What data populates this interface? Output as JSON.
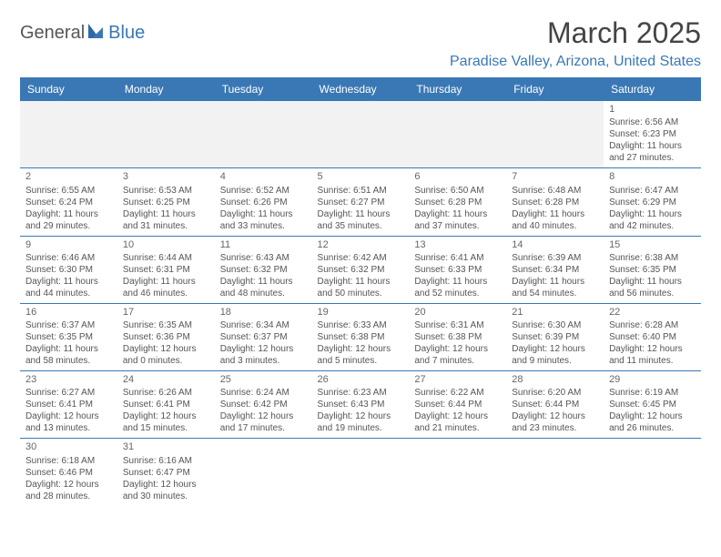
{
  "logo": {
    "text_general": "General",
    "text_blue": "Blue"
  },
  "title": "March 2025",
  "location": "Paradise Valley, Arizona, United States",
  "weekdays": [
    "Sunday",
    "Monday",
    "Tuesday",
    "Wednesday",
    "Thursday",
    "Friday",
    "Saturday"
  ],
  "colors": {
    "header_bg": "#3a78b5",
    "text": "#555",
    "rule": "#3a78b5"
  },
  "grid": [
    [
      null,
      null,
      null,
      null,
      null,
      null,
      {
        "n": "1",
        "sunrise": "Sunrise: 6:56 AM",
        "sunset": "Sunset: 6:23 PM",
        "daylight": "Daylight: 11 hours and 27 minutes."
      }
    ],
    [
      {
        "n": "2",
        "sunrise": "Sunrise: 6:55 AM",
        "sunset": "Sunset: 6:24 PM",
        "daylight": "Daylight: 11 hours and 29 minutes."
      },
      {
        "n": "3",
        "sunrise": "Sunrise: 6:53 AM",
        "sunset": "Sunset: 6:25 PM",
        "daylight": "Daylight: 11 hours and 31 minutes."
      },
      {
        "n": "4",
        "sunrise": "Sunrise: 6:52 AM",
        "sunset": "Sunset: 6:26 PM",
        "daylight": "Daylight: 11 hours and 33 minutes."
      },
      {
        "n": "5",
        "sunrise": "Sunrise: 6:51 AM",
        "sunset": "Sunset: 6:27 PM",
        "daylight": "Daylight: 11 hours and 35 minutes."
      },
      {
        "n": "6",
        "sunrise": "Sunrise: 6:50 AM",
        "sunset": "Sunset: 6:28 PM",
        "daylight": "Daylight: 11 hours and 37 minutes."
      },
      {
        "n": "7",
        "sunrise": "Sunrise: 6:48 AM",
        "sunset": "Sunset: 6:28 PM",
        "daylight": "Daylight: 11 hours and 40 minutes."
      },
      {
        "n": "8",
        "sunrise": "Sunrise: 6:47 AM",
        "sunset": "Sunset: 6:29 PM",
        "daylight": "Daylight: 11 hours and 42 minutes."
      }
    ],
    [
      {
        "n": "9",
        "sunrise": "Sunrise: 6:46 AM",
        "sunset": "Sunset: 6:30 PM",
        "daylight": "Daylight: 11 hours and 44 minutes."
      },
      {
        "n": "10",
        "sunrise": "Sunrise: 6:44 AM",
        "sunset": "Sunset: 6:31 PM",
        "daylight": "Daylight: 11 hours and 46 minutes."
      },
      {
        "n": "11",
        "sunrise": "Sunrise: 6:43 AM",
        "sunset": "Sunset: 6:32 PM",
        "daylight": "Daylight: 11 hours and 48 minutes."
      },
      {
        "n": "12",
        "sunrise": "Sunrise: 6:42 AM",
        "sunset": "Sunset: 6:32 PM",
        "daylight": "Daylight: 11 hours and 50 minutes."
      },
      {
        "n": "13",
        "sunrise": "Sunrise: 6:41 AM",
        "sunset": "Sunset: 6:33 PM",
        "daylight": "Daylight: 11 hours and 52 minutes."
      },
      {
        "n": "14",
        "sunrise": "Sunrise: 6:39 AM",
        "sunset": "Sunset: 6:34 PM",
        "daylight": "Daylight: 11 hours and 54 minutes."
      },
      {
        "n": "15",
        "sunrise": "Sunrise: 6:38 AM",
        "sunset": "Sunset: 6:35 PM",
        "daylight": "Daylight: 11 hours and 56 minutes."
      }
    ],
    [
      {
        "n": "16",
        "sunrise": "Sunrise: 6:37 AM",
        "sunset": "Sunset: 6:35 PM",
        "daylight": "Daylight: 11 hours and 58 minutes."
      },
      {
        "n": "17",
        "sunrise": "Sunrise: 6:35 AM",
        "sunset": "Sunset: 6:36 PM",
        "daylight": "Daylight: 12 hours and 0 minutes."
      },
      {
        "n": "18",
        "sunrise": "Sunrise: 6:34 AM",
        "sunset": "Sunset: 6:37 PM",
        "daylight": "Daylight: 12 hours and 3 minutes."
      },
      {
        "n": "19",
        "sunrise": "Sunrise: 6:33 AM",
        "sunset": "Sunset: 6:38 PM",
        "daylight": "Daylight: 12 hours and 5 minutes."
      },
      {
        "n": "20",
        "sunrise": "Sunrise: 6:31 AM",
        "sunset": "Sunset: 6:38 PM",
        "daylight": "Daylight: 12 hours and 7 minutes."
      },
      {
        "n": "21",
        "sunrise": "Sunrise: 6:30 AM",
        "sunset": "Sunset: 6:39 PM",
        "daylight": "Daylight: 12 hours and 9 minutes."
      },
      {
        "n": "22",
        "sunrise": "Sunrise: 6:28 AM",
        "sunset": "Sunset: 6:40 PM",
        "daylight": "Daylight: 12 hours and 11 minutes."
      }
    ],
    [
      {
        "n": "23",
        "sunrise": "Sunrise: 6:27 AM",
        "sunset": "Sunset: 6:41 PM",
        "daylight": "Daylight: 12 hours and 13 minutes."
      },
      {
        "n": "24",
        "sunrise": "Sunrise: 6:26 AM",
        "sunset": "Sunset: 6:41 PM",
        "daylight": "Daylight: 12 hours and 15 minutes."
      },
      {
        "n": "25",
        "sunrise": "Sunrise: 6:24 AM",
        "sunset": "Sunset: 6:42 PM",
        "daylight": "Daylight: 12 hours and 17 minutes."
      },
      {
        "n": "26",
        "sunrise": "Sunrise: 6:23 AM",
        "sunset": "Sunset: 6:43 PM",
        "daylight": "Daylight: 12 hours and 19 minutes."
      },
      {
        "n": "27",
        "sunrise": "Sunrise: 6:22 AM",
        "sunset": "Sunset: 6:44 PM",
        "daylight": "Daylight: 12 hours and 21 minutes."
      },
      {
        "n": "28",
        "sunrise": "Sunrise: 6:20 AM",
        "sunset": "Sunset: 6:44 PM",
        "daylight": "Daylight: 12 hours and 23 minutes."
      },
      {
        "n": "29",
        "sunrise": "Sunrise: 6:19 AM",
        "sunset": "Sunset: 6:45 PM",
        "daylight": "Daylight: 12 hours and 26 minutes."
      }
    ],
    [
      {
        "n": "30",
        "sunrise": "Sunrise: 6:18 AM",
        "sunset": "Sunset: 6:46 PM",
        "daylight": "Daylight: 12 hours and 28 minutes."
      },
      {
        "n": "31",
        "sunrise": "Sunrise: 6:16 AM",
        "sunset": "Sunset: 6:47 PM",
        "daylight": "Daylight: 12 hours and 30 minutes."
      },
      null,
      null,
      null,
      null,
      null
    ]
  ]
}
